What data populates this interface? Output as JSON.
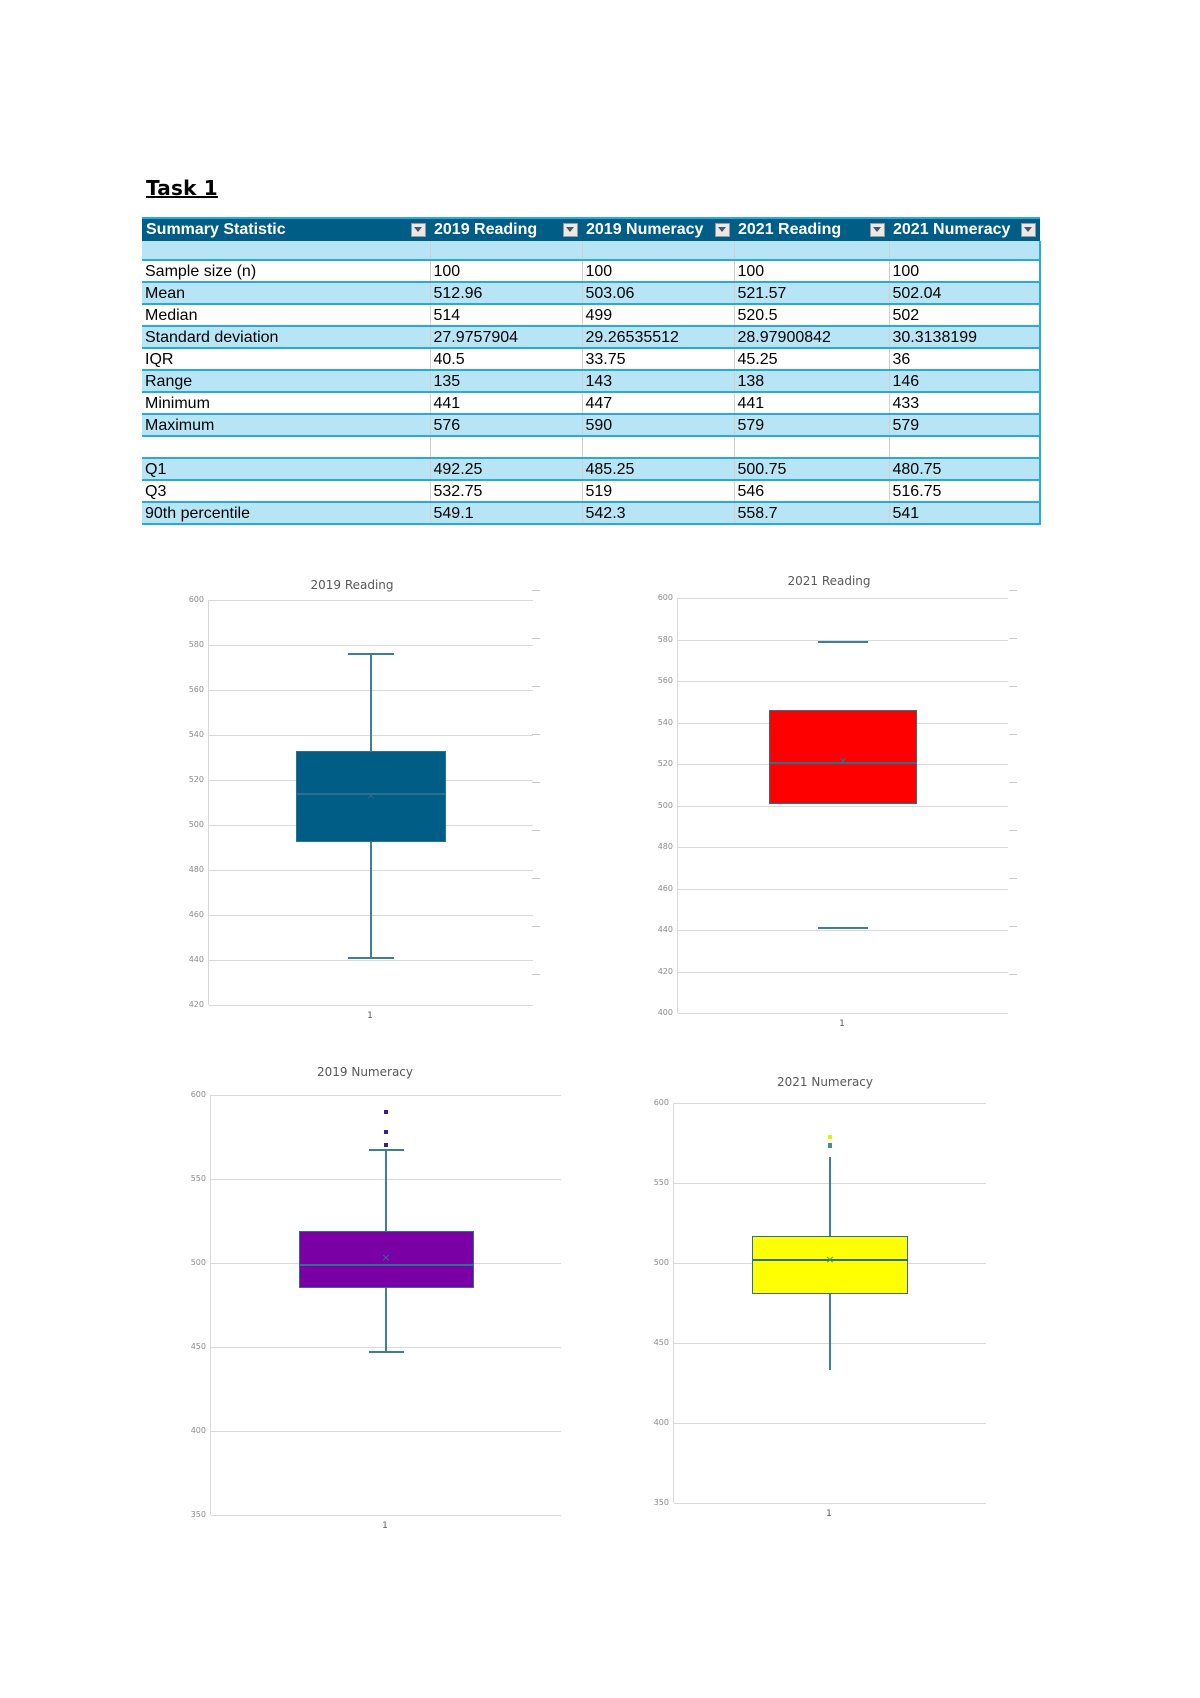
{
  "page": {
    "title": "Task 1"
  },
  "table": {
    "headers": [
      "Summary Statistic",
      "2019 Reading",
      "2019 Numeracy",
      "2021 Reading",
      "2021 Numeracy"
    ],
    "rows": [
      {
        "label": "Sample size (n)",
        "values": [
          "100",
          "100",
          "100",
          "100"
        ]
      },
      {
        "label": "Mean",
        "values": [
          "512.96",
          "503.06",
          "521.57",
          "502.04"
        ]
      },
      {
        "label": "Median",
        "values": [
          "514",
          "499",
          "520.5",
          "502"
        ]
      },
      {
        "label": "Standard deviation",
        "values": [
          "27.9757904",
          "29.26535512",
          "28.97900842",
          "30.3138199"
        ]
      },
      {
        "label": "IQR",
        "values": [
          "40.5",
          "33.75",
          "45.25",
          "36"
        ]
      },
      {
        "label": "Range",
        "values": [
          "135",
          "143",
          "138",
          "146"
        ]
      },
      {
        "label": "Minimum",
        "values": [
          "441",
          "447",
          "441",
          "433"
        ]
      },
      {
        "label": "Maximum",
        "values": [
          "576",
          "590",
          "579",
          "579"
        ]
      }
    ],
    "rows2": [
      {
        "label": "Q1",
        "values": [
          "492.25",
          "485.25",
          "500.75",
          "480.75"
        ]
      },
      {
        "label": "Q3",
        "values": [
          "532.75",
          "519",
          "546",
          "516.75"
        ]
      },
      {
        "label": "90th percentile",
        "values": [
          "549.1",
          "542.3",
          "558.7",
          "541"
        ]
      }
    ],
    "colors": {
      "header_bg": "#005e86",
      "band": "#b8e5f6",
      "border": "#29a9df"
    }
  },
  "chart_data": [
    {
      "type": "box",
      "title": "2019 Reading",
      "categories": [
        "1"
      ],
      "fill": "#005e86",
      "ylim": [
        420,
        600
      ],
      "yticks": [
        600,
        580,
        560,
        540,
        520,
        500,
        480,
        460,
        440,
        420
      ],
      "min": 441,
      "q1": 492.25,
      "median": 514,
      "q3": 532.75,
      "max": 576,
      "mean": 512.96,
      "outliers": [],
      "grid": true,
      "xlabel": "",
      "ylabel": ""
    },
    {
      "type": "box",
      "title": "2021 Reading",
      "categories": [
        "1"
      ],
      "fill": "#ff0000",
      "ylim": [
        400,
        600
      ],
      "yticks": [
        600,
        580,
        560,
        540,
        520,
        500,
        480,
        460,
        440,
        420,
        400
      ],
      "min": 441,
      "q1": 500.75,
      "median": 520.5,
      "q3": 546,
      "max": 579,
      "mean": 521.57,
      "outliers": [],
      "grid": true,
      "xlabel": "",
      "ylabel": ""
    },
    {
      "type": "box",
      "title": "2019 Numeracy",
      "categories": [
        "1"
      ],
      "fill": "#7a00a6",
      "ylim": [
        350,
        600
      ],
      "yticks": [
        600,
        550,
        500,
        450,
        400,
        350
      ],
      "min": 447,
      "q1": 485.25,
      "median": 499,
      "q3": 519,
      "max": 590,
      "mean": 503.06,
      "whisker_high": 567,
      "outliers": [
        590,
        578,
        570
      ],
      "grid": true,
      "xlabel": "",
      "ylabel": ""
    },
    {
      "type": "box",
      "title": "2021 Numeracy",
      "categories": [
        "1"
      ],
      "fill": "#ffff00",
      "ylim": [
        350,
        600
      ],
      "yticks": [
        600,
        550,
        500,
        450,
        400,
        350
      ],
      "min": 433,
      "q1": 480.75,
      "median": 502,
      "q3": 516.75,
      "max": 579,
      "mean": 502.04,
      "whisker_high": 566,
      "outliers": [
        579,
        574,
        573
      ],
      "grid": true,
      "xlabel": "",
      "ylabel": ""
    }
  ]
}
